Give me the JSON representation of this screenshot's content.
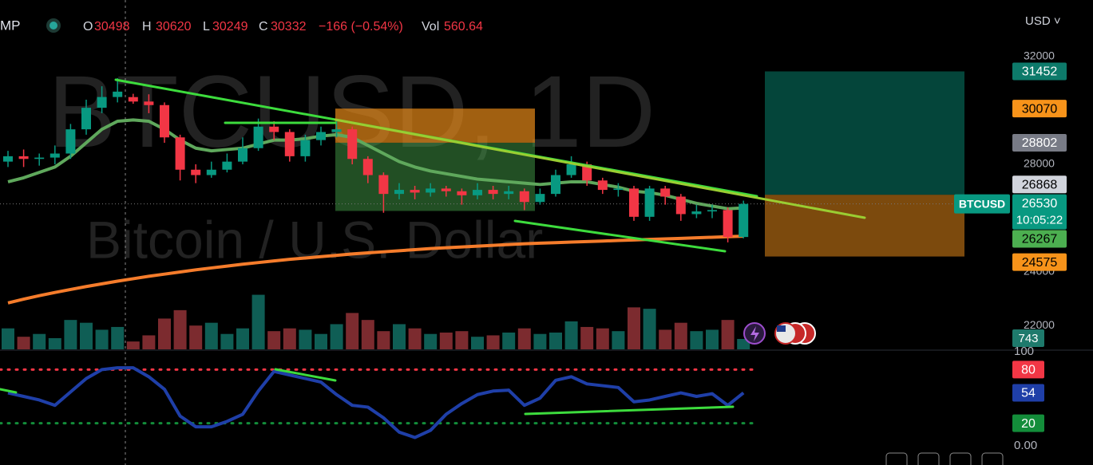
{
  "header": {
    "symbol": "MP",
    "open_label": "O",
    "high_label": "H",
    "low_label": "L",
    "close_label": "C",
    "change": "−166 (−0.54%)",
    "vol_label": "Vol",
    "currency": "USD ˅"
  },
  "chart_data": {
    "type": "candlestick",
    "watermark": "BTCUSD, 1D",
    "watermark_subtitle": "Bitcoin / U.S. Dollar",
    "up_color": "#089981",
    "down_color": "#f23645",
    "volume_up_color": "#0f5e55",
    "volume_down_color": "#7c2b2f",
    "open": [
      28100,
      28300,
      28200,
      28250,
      28400,
      29300,
      30100,
      30500,
      30498,
      30332,
      30200,
      29000,
      27800,
      27600,
      27800,
      28100,
      28600,
      29400,
      29200,
      28300,
      28900,
      29200,
      29300,
      28200,
      27600,
      26900,
      27050,
      26950,
      27100,
      27000,
      26850,
      27050,
      26900,
      27000,
      26600,
      26900,
      27600,
      28000,
      27400,
      27050,
      27100,
      26050,
      27100,
      26800,
      26150,
      26250,
      26300,
      25300
    ],
    "high": [
      28500,
      28550,
      28400,
      28700,
      29500,
      30400,
      30900,
      31200,
      30620,
      30600,
      30300,
      29100,
      28000,
      28100,
      28400,
      29000,
      29700,
      29600,
      29300,
      29100,
      29400,
      29600,
      29400,
      28300,
      27700,
      27300,
      27200,
      27300,
      27200,
      27100,
      27300,
      27200,
      27200,
      27100,
      27100,
      27800,
      28300,
      28100,
      27500,
      27300,
      27200,
      27200,
      27200,
      26900,
      26500,
      26500,
      26400,
      26650
    ],
    "low": [
      27900,
      27900,
      27950,
      28000,
      28200,
      29100,
      29900,
      30300,
      30249,
      29900,
      28800,
      27400,
      27300,
      27500,
      27700,
      28000,
      28500,
      28900,
      28100,
      28100,
      28700,
      29000,
      28000,
      27300,
      26200,
      26700,
      26700,
      26800,
      26800,
      26500,
      26700,
      26700,
      26700,
      26300,
      26500,
      26800,
      27500,
      27200,
      26900,
      26800,
      25900,
      25900,
      26500,
      25900,
      26000,
      26000,
      25100,
      25250
    ],
    "close": [
      28300,
      28200,
      28250,
      28400,
      29300,
      30100,
      30500,
      30700,
      30332,
      30200,
      29000,
      27800,
      27600,
      27800,
      28100,
      28600,
      29400,
      29200,
      28300,
      28900,
      29200,
      29300,
      28200,
      27600,
      26900,
      27050,
      26950,
      27100,
      27000,
      26850,
      27050,
      26900,
      27000,
      26600,
      26900,
      27600,
      28000,
      27400,
      27050,
      27100,
      26050,
      27100,
      26800,
      26150,
      26250,
      26300,
      25300,
      26530
    ],
    "volume": [
      1500,
      900,
      1100,
      800,
      2100,
      1900,
      1400,
      1600,
      560.64,
      1000,
      2200,
      2800,
      1700,
      1900,
      1100,
      1500,
      3900,
      1300,
      1500,
      1400,
      1100,
      1800,
      2600,
      2100,
      1300,
      1800,
      1500,
      1100,
      1200,
      1300,
      900,
      1000,
      1200,
      1500,
      1100,
      1200,
      2000,
      1600,
      1500,
      1300,
      3000,
      2900,
      1400,
      1900,
      1300,
      1400,
      2100,
      743
    ],
    "volume_lim": [
      0,
      5700
    ],
    "volume_label_color": "#1e7a6c",
    "ema": [
      27350,
      27500,
      27700,
      27900,
      28300,
      28800,
      29300,
      29600,
      29650,
      29600,
      29300,
      28900,
      28600,
      28500,
      28550,
      28600,
      28750,
      28900,
      28900,
      28950,
      29050,
      29100,
      29000,
      28700,
      28400,
      28100,
      27900,
      27750,
      27650,
      27550,
      27450,
      27400,
      27350,
      27300,
      27250,
      27300,
      27350,
      27350,
      27250,
      27150,
      27000,
      26950,
      26850,
      26700,
      26550,
      26450,
      26350,
      26380
    ],
    "ema_color": "#5fa85c",
    "ma200": [
      22850,
      22990,
      23120,
      23240,
      23350,
      23460,
      23560,
      23660,
      23750,
      23840,
      23920,
      24000,
      24080,
      24150,
      24220,
      24290,
      24350,
      24410,
      24470,
      24520,
      24570,
      24620,
      24670,
      24710,
      24750,
      24790,
      24830,
      24870,
      24900,
      24930,
      24960,
      24990,
      25020,
      25050,
      25070,
      25090,
      25110,
      25130,
      25150,
      25170,
      25190,
      25210,
      25230,
      25250,
      25270,
      25290,
      25310,
      25330
    ],
    "ma200_color": "#f57c2b",
    "ylim": [
      21126,
      34104
    ],
    "yticks": [
      22000,
      24000,
      28000,
      32000
    ],
    "price_labels": [
      {
        "value": 31452,
        "color": "#0d7a6a",
        "text_color": "#ffffff"
      },
      {
        "value": 30070,
        "color": "#f7931a",
        "text_color": "#000000"
      },
      {
        "value": 28802,
        "color": "#787b86",
        "text_color": "#ffffff"
      },
      {
        "value": 26868,
        "color": "#d1d4dc",
        "text_color": "#000000"
      },
      {
        "value": 26267,
        "color": "#4caf50",
        "text_color": "#000000"
      },
      {
        "value": 24575,
        "color": "#f7931a",
        "text_color": "#000000"
      }
    ],
    "last_symbol": "BTCUSD",
    "countdown": "10:05:22",
    "last_color": "#089981",
    "rsi": [
      54,
      50,
      46,
      40,
      55,
      70,
      80,
      82,
      82,
      72,
      58,
      28,
      16,
      16,
      22,
      30,
      56,
      78,
      74,
      70,
      66,
      52,
      40,
      38,
      26,
      10,
      4,
      12,
      30,
      42,
      52,
      56,
      57,
      40,
      48,
      68,
      72,
      64,
      62,
      60,
      44,
      46,
      50,
      54,
      50,
      53,
      40,
      54
    ],
    "rsi_color": "#1f3fa8",
    "rsi_ylim": [
      0,
      100
    ],
    "rsi_yticks": [
      {
        "value": 0,
        "label": "0.00"
      },
      100
    ],
    "rsi_levels": [
      {
        "value": 80,
        "color": "#f23645"
      },
      {
        "value": 20,
        "color": "#138d3a"
      }
    ]
  }
}
